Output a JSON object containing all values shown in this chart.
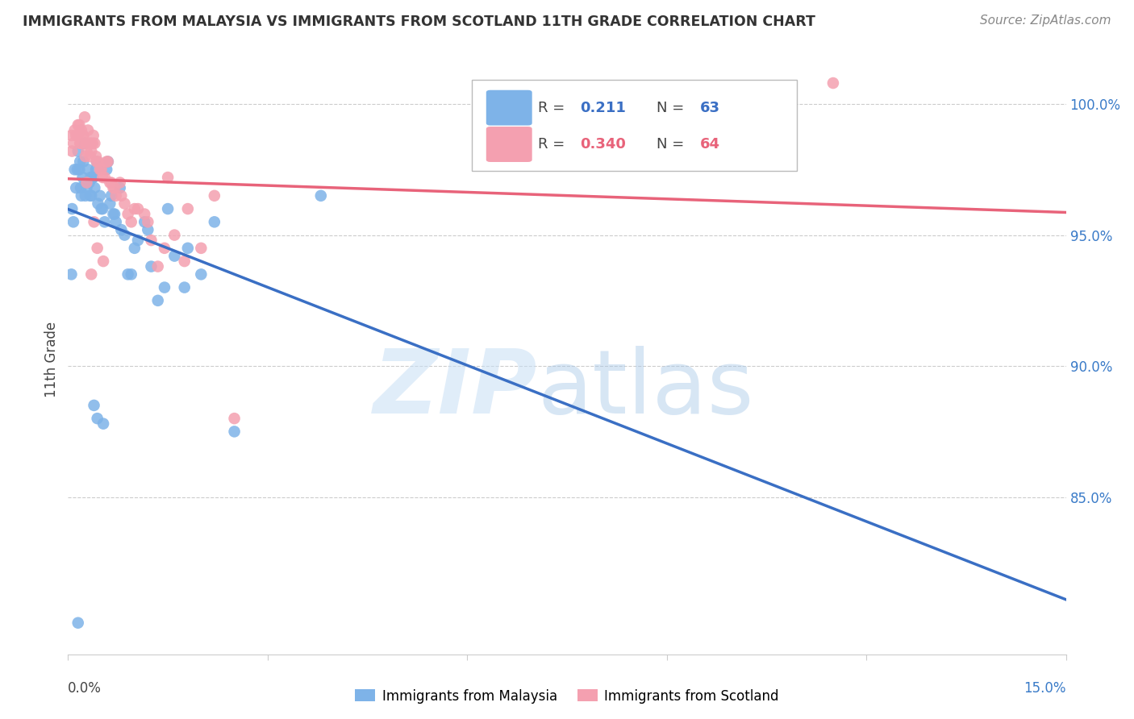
{
  "title": "IMMIGRANTS FROM MALAYSIA VS IMMIGRANTS FROM SCOTLAND 11TH GRADE CORRELATION CHART",
  "source": "Source: ZipAtlas.com",
  "ylabel": "11th Grade",
  "xlim": [
    0.0,
    15.0
  ],
  "ylim": [
    79.0,
    101.5
  ],
  "r_malaysia": 0.211,
  "n_malaysia": 63,
  "r_scotland": 0.34,
  "n_scotland": 64,
  "color_malaysia": "#7EB3E8",
  "color_scotland": "#F4A0B0",
  "trendline_color_malaysia": "#3A6FC4",
  "trendline_color_scotland": "#E8637A",
  "malaysia_x": [
    0.05,
    0.1,
    0.15,
    0.18,
    0.2,
    0.22,
    0.25,
    0.28,
    0.3,
    0.32,
    0.35,
    0.38,
    0.4,
    0.42,
    0.45,
    0.5,
    0.55,
    0.6,
    0.65,
    0.7,
    0.8,
    0.9,
    1.0,
    1.2,
    1.5,
    1.8,
    2.2,
    0.08,
    0.12,
    0.17,
    0.23,
    0.27,
    0.33,
    0.37,
    0.43,
    0.48,
    0.52,
    0.58,
    0.63,
    0.68,
    0.72,
    0.78,
    0.85,
    0.95,
    1.05,
    1.15,
    1.25,
    1.35,
    1.45,
    1.6,
    1.75,
    2.0,
    2.5,
    0.06,
    0.14,
    0.19,
    0.26,
    0.34,
    0.39,
    0.44,
    0.53,
    3.8,
    0.15
  ],
  "malaysia_y": [
    93.5,
    97.5,
    98.2,
    97.8,
    96.5,
    97.2,
    98.5,
    96.8,
    97.5,
    97.0,
    96.5,
    97.2,
    96.8,
    97.5,
    96.2,
    96.0,
    95.5,
    97.8,
    96.5,
    95.8,
    95.2,
    93.5,
    94.5,
    95.2,
    96.0,
    94.5,
    95.5,
    95.5,
    96.8,
    97.5,
    97.8,
    97.0,
    96.5,
    97.2,
    97.8,
    96.5,
    96.0,
    97.5,
    96.2,
    95.8,
    95.5,
    96.8,
    95.0,
    93.5,
    94.8,
    95.5,
    93.8,
    92.5,
    93.0,
    94.2,
    93.0,
    93.5,
    87.5,
    96.0,
    97.5,
    96.8,
    96.5,
    97.2,
    88.5,
    88.0,
    87.8,
    96.5,
    80.2
  ],
  "scotland_x": [
    0.05,
    0.1,
    0.15,
    0.18,
    0.2,
    0.22,
    0.25,
    0.28,
    0.3,
    0.32,
    0.35,
    0.38,
    0.4,
    0.42,
    0.45,
    0.5,
    0.55,
    0.6,
    0.65,
    0.7,
    0.8,
    0.9,
    1.0,
    1.2,
    1.5,
    1.8,
    2.2,
    0.08,
    0.12,
    0.17,
    0.23,
    0.27,
    0.33,
    0.37,
    0.43,
    0.48,
    0.52,
    0.58,
    0.63,
    0.68,
    0.72,
    0.78,
    0.85,
    0.95,
    1.05,
    1.15,
    1.25,
    1.35,
    1.45,
    1.6,
    1.75,
    2.0,
    2.5,
    0.06,
    0.14,
    0.19,
    0.26,
    0.34,
    0.39,
    0.44,
    0.53,
    11.5,
    0.28,
    0.35
  ],
  "scotland_y": [
    98.8,
    99.0,
    99.2,
    98.5,
    99.0,
    98.8,
    99.5,
    98.2,
    99.0,
    98.5,
    98.2,
    98.8,
    98.5,
    98.0,
    97.8,
    97.5,
    97.2,
    97.8,
    97.0,
    96.8,
    96.5,
    95.8,
    96.0,
    95.5,
    97.2,
    96.0,
    96.5,
    98.5,
    98.8,
    99.2,
    98.8,
    98.5,
    98.0,
    98.5,
    97.8,
    97.5,
    97.2,
    97.8,
    97.0,
    96.8,
    96.5,
    97.0,
    96.2,
    95.5,
    96.0,
    95.8,
    94.8,
    93.8,
    94.5,
    95.0,
    94.0,
    94.5,
    88.0,
    98.2,
    98.8,
    98.5,
    98.0,
    98.5,
    95.5,
    94.5,
    94.0,
    100.8,
    97.0,
    93.5
  ]
}
